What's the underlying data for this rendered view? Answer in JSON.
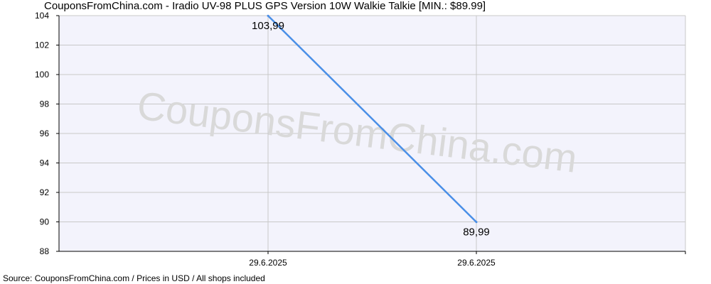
{
  "title": "CouponsFromChina.com - Iradio UV-98 PLUS GPS Version 10W Walkie Talkie [MIN.: $89.99]",
  "source": "Source: CouponsFromChina.com / Prices in USD / All shops included",
  "watermark": "CouponsFromChina.com",
  "colors": {
    "line": "#4a8fe7",
    "plot_background": "#f3f3fc",
    "grid": "#c8c8c8",
    "axis": "#000000",
    "watermark": "#d9d9d9"
  },
  "chart_data": {
    "type": "line",
    "title": "CouponsFromChina.com - Iradio UV-98 PLUS GPS Version 10W Walkie Talkie [MIN.: $89.99]",
    "xlabel": "",
    "ylabel": "",
    "ylim": [
      88,
      104
    ],
    "yticks": [
      "88",
      "90",
      "92",
      "94",
      "96",
      "98",
      "100",
      "102",
      "104"
    ],
    "categories": [
      "29.6.2025",
      "29.6.2025"
    ],
    "values": [
      103.99,
      89.99
    ],
    "value_labels": [
      "103,99",
      "89,99"
    ],
    "grid": true,
    "legend": "none"
  }
}
